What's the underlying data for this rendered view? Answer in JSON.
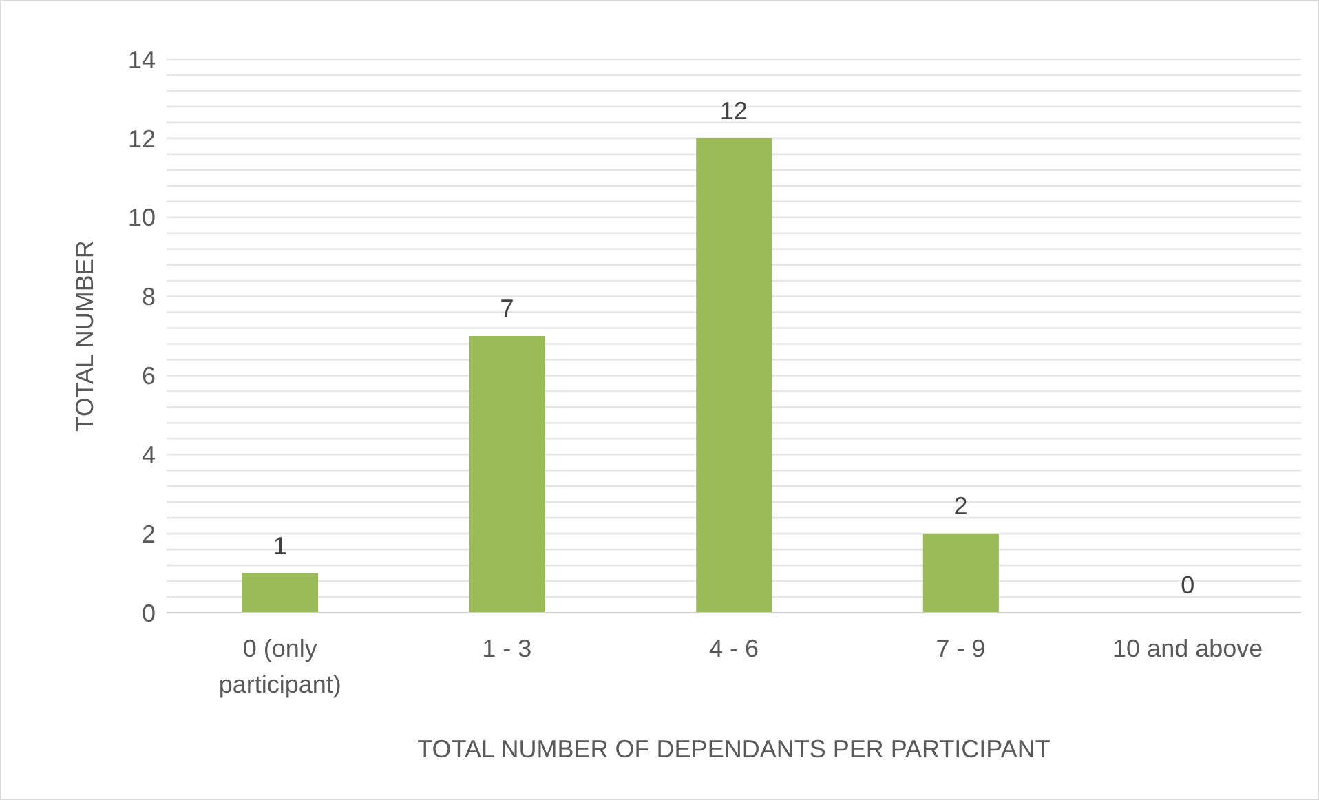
{
  "chart_data": {
    "type": "bar",
    "xlabel": "TOTAL NUMBER OF DEPENDANTS PER PARTICIPANT",
    "ylabel": "TOTAL NUMBER",
    "categories": [
      "0 (only participant)",
      "1 - 3",
      "4 - 6",
      "7 - 9",
      "10 and above"
    ],
    "values": [
      1,
      7,
      12,
      2,
      0
    ],
    "color": "#9bbb59",
    "data_labels": true,
    "grid": "y",
    "legend": false,
    "ylim": [
      0,
      14
    ],
    "yticks": [
      0,
      {
        "value": 0.4,
        "label": null
      },
      {
        "value": 0.8,
        "label": null
      },
      {
        "value": 1.2,
        "label": null
      },
      {
        "value": 1.6,
        "label": null
      },
      2,
      {
        "value": 2.4,
        "label": null
      },
      {
        "value": 2.8,
        "label": null
      },
      {
        "value": 3.2,
        "label": null
      },
      {
        "value": 3.6,
        "label": null
      },
      4,
      {
        "value": 4.4,
        "label": null
      },
      {
        "value": 4.8,
        "label": null
      },
      {
        "value": 5.2,
        "label": null
      },
      {
        "value": 5.6,
        "label": null
      },
      6,
      {
        "value": 6.4,
        "label": null
      },
      {
        "value": 6.8,
        "label": null
      },
      {
        "value": 7.2,
        "label": null
      },
      {
        "value": 7.6,
        "label": null
      },
      8,
      {
        "value": 8.4,
        "label": null
      },
      {
        "value": 8.8,
        "label": null
      },
      {
        "value": 9.2,
        "label": null
      },
      {
        "value": 9.6,
        "label": null
      },
      10,
      {
        "value": 10.4,
        "label": null
      },
      {
        "value": 10.8,
        "label": null
      },
      {
        "value": 11.2,
        "label": null
      },
      {
        "value": 11.6,
        "label": null
      },
      12,
      {
        "value": 12.4,
        "label": null
      },
      {
        "value": 12.8,
        "label": null
      },
      {
        "value": 13.2,
        "label": null
      },
      {
        "value": 13.6,
        "label": null
      },
      14
    ]
  }
}
